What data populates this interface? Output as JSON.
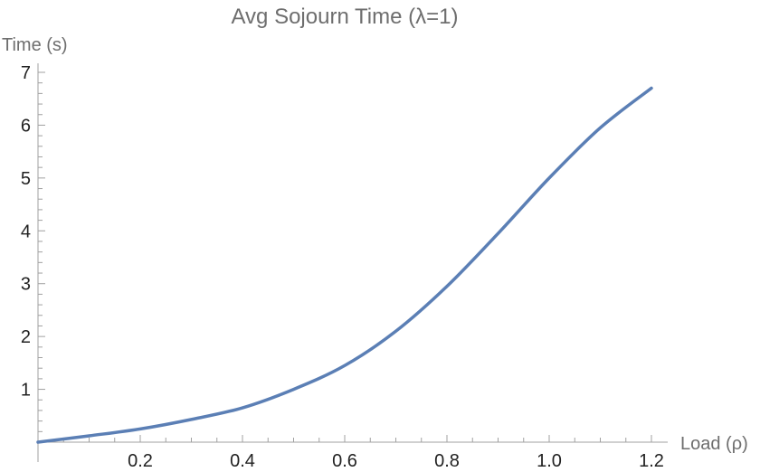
{
  "chart_data": {
    "type": "line",
    "title": "Avg Sojourn Time (λ=1)",
    "xlabel": "Load (ρ)",
    "ylabel": "Time (s)",
    "xlim": [
      0,
      1.2
    ],
    "ylim": [
      0,
      7
    ],
    "xticks": [
      0.2,
      0.4,
      0.6,
      0.8,
      1.0,
      1.2
    ],
    "xtick_labels": [
      "0.2",
      "0.4",
      "0.6",
      "0.8",
      "1.0",
      "1.2"
    ],
    "yticks": [
      1,
      2,
      3,
      4,
      5,
      6,
      7
    ],
    "ytick_labels": [
      "1",
      "2",
      "3",
      "4",
      "5",
      "6",
      "7"
    ],
    "grid": false,
    "series": [
      {
        "color": "#5b7fb5",
        "x": [
          0,
          0.1,
          0.2,
          0.3,
          0.4,
          0.5,
          0.6,
          0.7,
          0.8,
          0.9,
          1.0,
          1.1,
          1.2
        ],
        "y": [
          0,
          0.12,
          0.25,
          0.43,
          0.65,
          1.0,
          1.45,
          2.1,
          2.95,
          3.95,
          5.0,
          5.95,
          6.7
        ]
      }
    ]
  }
}
